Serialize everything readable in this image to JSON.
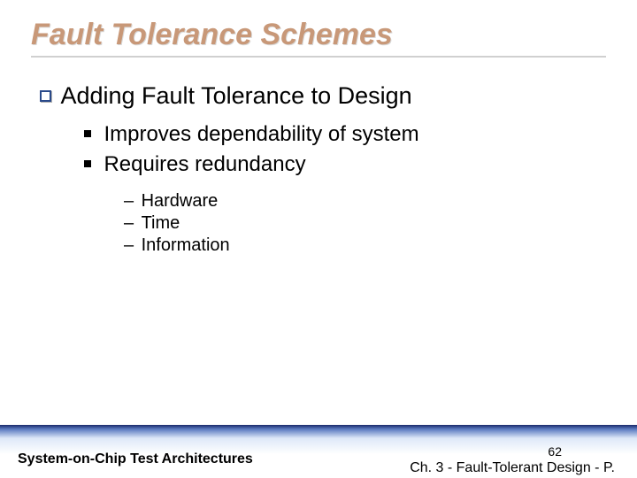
{
  "title": "Fault Tolerance Schemes",
  "level1": {
    "text": "Adding Fault Tolerance to Design"
  },
  "level2": [
    {
      "text": "Improves dependability of system"
    },
    {
      "text": "Requires redundancy"
    }
  ],
  "level3": [
    {
      "text": "Hardware"
    },
    {
      "text": "Time"
    },
    {
      "text": "Information"
    }
  ],
  "footer": {
    "left": "System-on-Chip Test Architectures",
    "right": "Ch. 3 - Fault-Tolerant Design - P.",
    "page": "62"
  },
  "colors": {
    "title_color": "#c89878",
    "bullet_border": "#2a4a8a",
    "text_color": "#000000",
    "rule_color": "#d0d0d0"
  }
}
